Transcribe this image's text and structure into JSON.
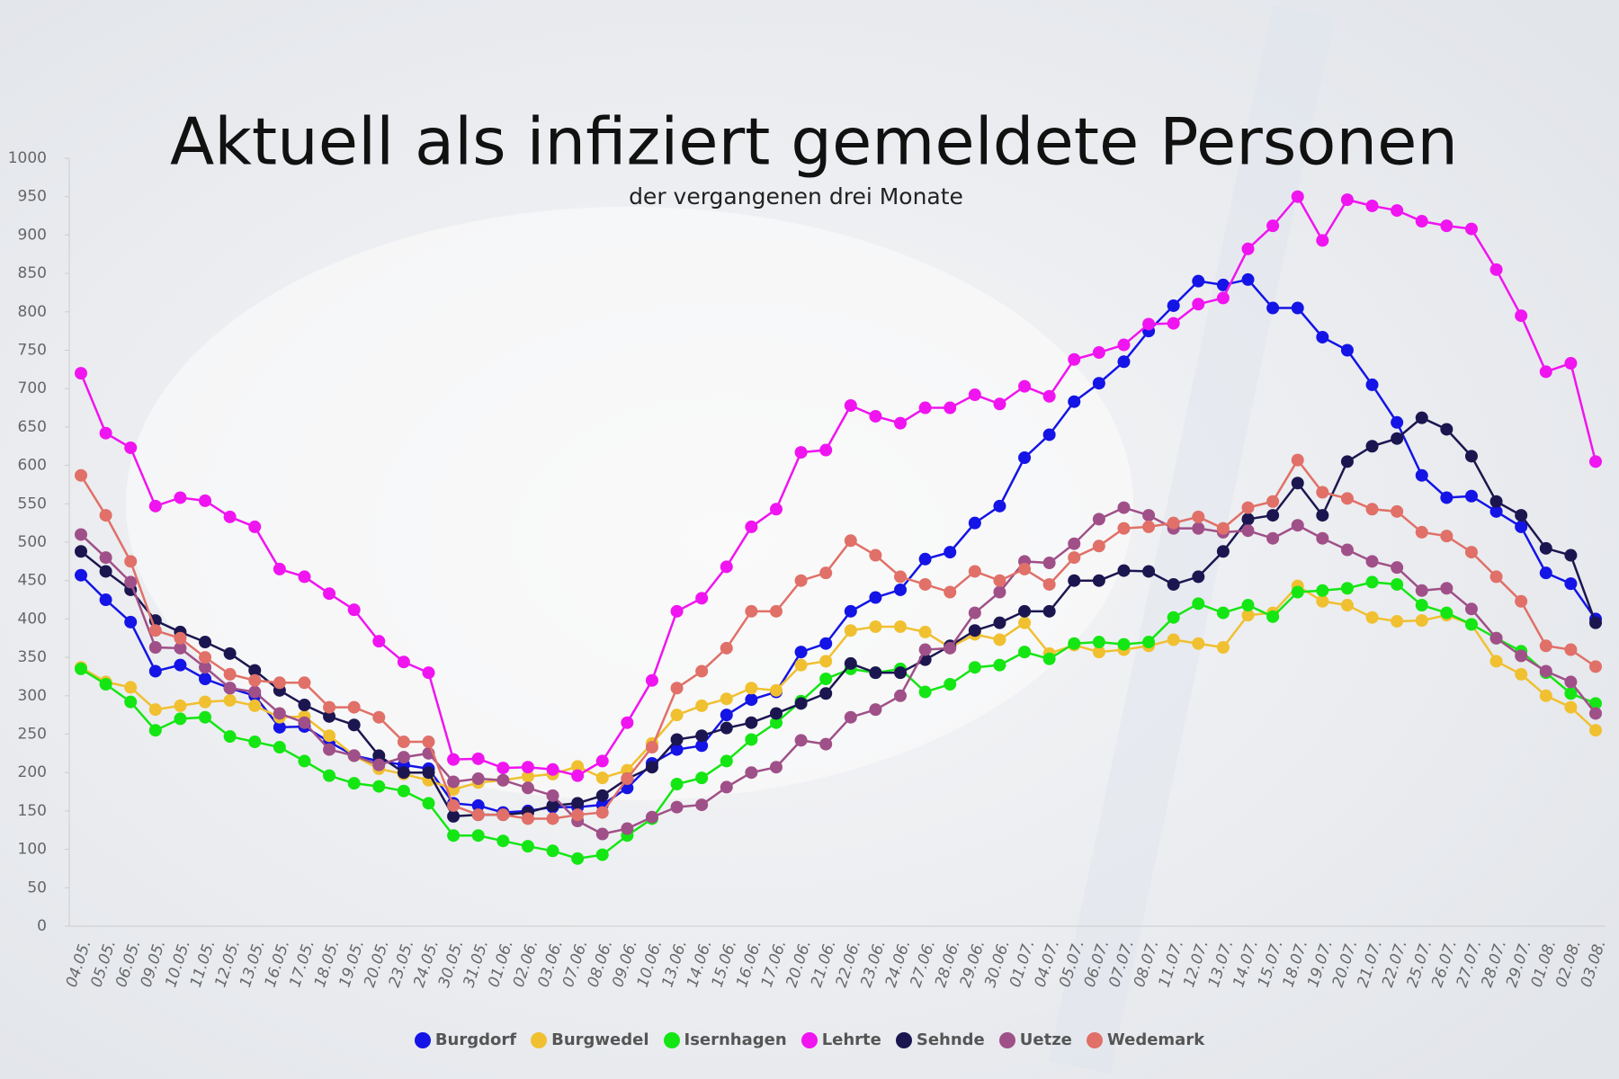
{
  "chart_data": {
    "type": "line",
    "title": "Aktuell als infiziert gemeldete Personen",
    "subtitle": "der vergangenen drei Monate",
    "categories": [
      "04.05.",
      "05.05.",
      "06.05.",
      "09.05.",
      "10.05.",
      "11.05.",
      "12.05.",
      "13.05.",
      "16.05.",
      "17.05.",
      "18.05.",
      "19.05.",
      "20.05.",
      "23.05.",
      "24.05.",
      "30.05.",
      "31.05.",
      "01.06.",
      "02.06.",
      "03.06.",
      "07.06.",
      "08.06.",
      "09.06.",
      "10.06.",
      "13.06.",
      "14.06.",
      "15.06.",
      "16.06.",
      "17.06.",
      "20.06.",
      "21.06.",
      "22.06.",
      "23.06.",
      "24.06.",
      "27.06.",
      "28.06.",
      "29.06.",
      "30.06.",
      "01.07.",
      "04.07.",
      "05.07.",
      "06.07.",
      "07.07.",
      "08.07.",
      "11.07.",
      "12.07.",
      "13.07.",
      "14.07.",
      "15.07.",
      "18.07.",
      "19.07.",
      "20.07.",
      "21.07.",
      "22.07.",
      "25.07.",
      "26.07.",
      "27.07.",
      "28.07.",
      "29.07.",
      "01.08.",
      "02.08.",
      "03.08."
    ],
    "series": [
      {
        "name": "Burgdorf",
        "color": "#1414e6",
        "values": [
          457,
          425,
          396,
          332,
          340,
          322,
          310,
          300,
          259,
          260,
          240,
          222,
          215,
          210,
          205,
          160,
          157,
          148,
          150,
          155,
          155,
          158,
          180,
          212,
          230,
          235,
          275,
          295,
          305,
          357,
          368,
          410,
          428,
          438,
          478,
          487,
          525,
          547,
          610,
          640,
          683,
          707,
          735,
          775,
          808,
          840,
          835,
          842,
          805,
          805,
          767,
          750,
          705,
          656,
          587,
          558,
          560,
          540,
          520,
          460,
          446,
          400
        ]
      },
      {
        "name": "Burgwedel",
        "color": "#f0c030",
        "values": [
          337,
          318,
          311,
          282,
          287,
          292,
          294,
          287,
          272,
          273,
          248,
          222,
          205,
          198,
          190,
          178,
          187,
          190,
          195,
          198,
          208,
          193,
          203,
          238,
          275,
          287,
          296,
          310,
          307,
          340,
          345,
          385,
          390,
          390,
          383,
          363,
          380,
          373,
          395,
          355,
          366,
          357,
          360,
          365,
          373,
          368,
          363,
          405,
          408,
          443,
          423,
          418,
          402,
          397,
          398,
          405,
          393,
          345,
          328,
          300,
          285,
          255
        ]
      },
      {
        "name": "Isernhagen",
        "color": "#14e614",
        "values": [
          335,
          315,
          292,
          255,
          270,
          272,
          247,
          240,
          233,
          215,
          196,
          186,
          182,
          176,
          160,
          118,
          118,
          111,
          104,
          98,
          88,
          93,
          118,
          140,
          185,
          193,
          215,
          243,
          265,
          293,
          322,
          335,
          330,
          335,
          305,
          315,
          337,
          340,
          357,
          348,
          368,
          370,
          367,
          370,
          402,
          420,
          408,
          418,
          403,
          435,
          437,
          440,
          448,
          445,
          418,
          408,
          393,
          375,
          358,
          330,
          303,
          290
        ]
      },
      {
        "name": "Lehrte",
        "color": "#f014f0",
        "values": [
          720,
          642,
          623,
          547,
          558,
          554,
          533,
          520,
          465,
          455,
          433,
          412,
          371,
          344,
          330,
          217,
          218,
          206,
          207,
          204,
          196,
          215,
          265,
          320,
          410,
          427,
          468,
          520,
          543,
          617,
          620,
          678,
          664,
          655,
          675,
          675,
          692,
          680,
          703,
          690,
          738,
          747,
          757,
          784,
          785,
          810,
          818,
          882,
          912,
          950,
          893,
          946,
          938,
          932,
          918,
          912,
          908,
          855,
          795,
          722,
          733,
          605
        ]
      },
      {
        "name": "Sehnde",
        "color": "#1c1650",
        "values": [
          488,
          462,
          438,
          398,
          383,
          370,
          355,
          333,
          307,
          288,
          273,
          262,
          222,
          200,
          200,
          143,
          145,
          145,
          148,
          157,
          160,
          170,
          192,
          207,
          243,
          248,
          258,
          265,
          277,
          290,
          303,
          342,
          330,
          330,
          347,
          365,
          385,
          395,
          410,
          410,
          450,
          450,
          463,
          462,
          445,
          455,
          488,
          530,
          535,
          577,
          535,
          605,
          625,
          635,
          662,
          647,
          612,
          553,
          535,
          492,
          483,
          395
        ]
      },
      {
        "name": "Uetze",
        "color": "#a05088",
        "values": [
          510,
          480,
          448,
          363,
          362,
          337,
          310,
          305,
          277,
          265,
          230,
          222,
          210,
          220,
          225,
          188,
          192,
          190,
          180,
          170,
          137,
          120,
          127,
          142,
          155,
          158,
          181,
          200,
          207,
          242,
          237,
          272,
          282,
          300,
          360,
          362,
          408,
          435,
          475,
          473,
          498,
          530,
          545,
          535,
          518,
          518,
          513,
          515,
          505,
          522,
          505,
          490,
          475,
          467,
          437,
          440,
          413,
          375,
          352,
          332,
          318,
          277
        ]
      },
      {
        "name": "Wedemark",
        "color": "#e07068",
        "values": [
          587,
          535,
          475,
          385,
          375,
          350,
          328,
          320,
          317,
          317,
          285,
          285,
          272,
          240,
          240,
          157,
          145,
          145,
          140,
          140,
          145,
          148,
          192,
          233,
          310,
          332,
          362,
          410,
          410,
          450,
          460,
          502,
          483,
          455,
          445,
          435,
          462,
          450,
          465,
          445,
          480,
          495,
          518,
          520,
          525,
          533,
          518,
          545,
          553,
          607,
          565,
          557,
          543,
          540,
          513,
          508,
          487,
          455,
          423,
          365,
          360,
          338
        ]
      }
    ],
    "ylim": [
      0,
      1000
    ],
    "yticks": [
      0,
      50,
      100,
      150,
      200,
      250,
      300,
      350,
      400,
      450,
      500,
      550,
      600,
      650,
      700,
      750,
      800,
      850,
      900,
      950,
      1000
    ],
    "grid": false
  }
}
